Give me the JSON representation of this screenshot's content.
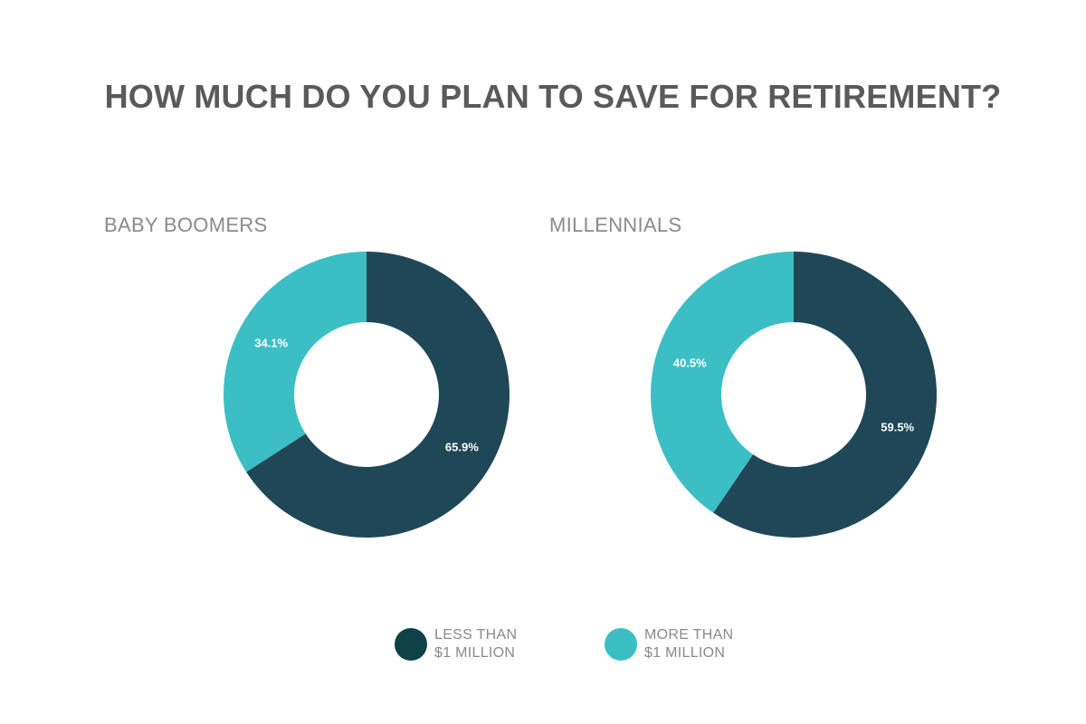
{
  "title": "HOW MUCH DO YOU PLAN TO SAVE FOR RETIREMENT?",
  "colors": {
    "less": "#1f4757",
    "more": "#3bbfc4",
    "legend_less": "#0e4148"
  },
  "legend": [
    {
      "line1": "LESS THAN",
      "line2": "$1 MILLION"
    },
    {
      "line1": "MORE THAN",
      "line2": "$1 MILLION"
    }
  ],
  "chart_data": [
    {
      "type": "pie",
      "title": "BABY BOOMERS",
      "categories": [
        "LESS THAN $1 MILLION",
        "MORE THAN $1 MILLION"
      ],
      "values": [
        65.9,
        34.1
      ],
      "labels": [
        "65.9%",
        "34.1%"
      ]
    },
    {
      "type": "pie",
      "title": "MILLENNIALS",
      "categories": [
        "LESS THAN $1 MILLION",
        "MORE THAN $1 MILLION"
      ],
      "values": [
        59.5,
        40.5
      ],
      "labels": [
        "59.5%",
        "40.5%"
      ]
    }
  ]
}
